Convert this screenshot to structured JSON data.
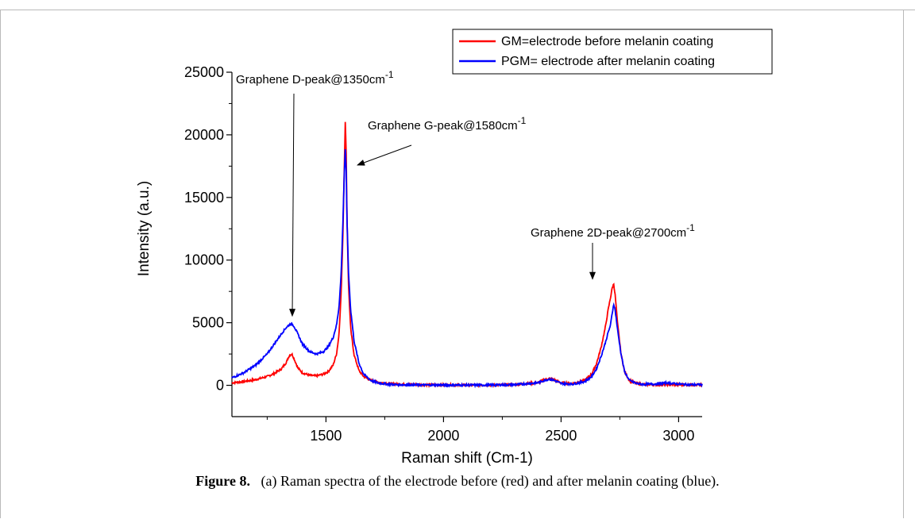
{
  "figure": {
    "label": "Figure 8.",
    "caption": "(a) Raman spectra of the electrode before (red) and after melanin coating (blue)."
  },
  "chart_data": {
    "type": "line",
    "xlabel": "Raman shift (Cm-1)",
    "ylabel": "Intensity (a.u.)",
    "xlim": [
      1100,
      3100
    ],
    "ylim": [
      -2500,
      25000
    ],
    "x_ticks": [
      1500,
      2000,
      2500,
      3000
    ],
    "x_tick_labels": [
      "1500",
      "2000",
      "2500",
      "3000"
    ],
    "y_ticks": [
      0,
      5000,
      10000,
      15000,
      20000,
      25000
    ],
    "y_tick_labels": [
      "0",
      "5000",
      "10000",
      "15000",
      "20000",
      "25000"
    ],
    "grid": false,
    "legend_position": "top-right",
    "series": [
      {
        "name": "GM=electrode before melanin coating",
        "color": "#ff0000",
        "x": [
          1100,
          1150,
          1200,
          1250,
          1280,
          1310,
          1330,
          1345,
          1355,
          1365,
          1380,
          1400,
          1430,
          1460,
          1490,
          1510,
          1530,
          1545,
          1555,
          1565,
          1572,
          1578,
          1582,
          1586,
          1590,
          1596,
          1605,
          1620,
          1640,
          1660,
          1690,
          1720,
          1760,
          1800,
          1900,
          2000,
          2100,
          2200,
          2300,
          2400,
          2430,
          2450,
          2470,
          2500,
          2550,
          2600,
          2630,
          2650,
          2670,
          2690,
          2700,
          2710,
          2718,
          2724,
          2730,
          2740,
          2755,
          2770,
          2790,
          2820,
          2850,
          2900,
          2950,
          3000,
          3050,
          3100
        ],
        "y": [
          200,
          300,
          450,
          700,
          950,
          1300,
          1800,
          2400,
          2500,
          2100,
          1400,
          1000,
          800,
          750,
          900,
          1100,
          1600,
          2500,
          4000,
          7500,
          12000,
          17500,
          21000,
          18500,
          13000,
          8000,
          4500,
          2400,
          1200,
          700,
          400,
          250,
          150,
          100,
          50,
          30,
          20,
          20,
          50,
          200,
          450,
          550,
          450,
          200,
          150,
          400,
          900,
          1700,
          3000,
          4800,
          6000,
          7000,
          7800,
          8100,
          7200,
          5000,
          2500,
          1100,
          400,
          150,
          80,
          50,
          50,
          50,
          30,
          30
        ]
      },
      {
        "name": "PGM= electrode after melanin coating",
        "color": "#0000ff",
        "x": [
          1100,
          1150,
          1200,
          1250,
          1280,
          1310,
          1330,
          1345,
          1355,
          1365,
          1380,
          1400,
          1430,
          1460,
          1490,
          1510,
          1530,
          1545,
          1555,
          1565,
          1572,
          1578,
          1582,
          1586,
          1590,
          1596,
          1605,
          1620,
          1640,
          1660,
          1690,
          1720,
          1760,
          1800,
          1900,
          2000,
          2100,
          2200,
          2300,
          2400,
          2430,
          2450,
          2470,
          2500,
          2550,
          2600,
          2630,
          2650,
          2670,
          2690,
          2700,
          2710,
          2718,
          2724,
          2730,
          2740,
          2755,
          2770,
          2790,
          2820,
          2850,
          2900,
          2950,
          3000,
          3050,
          3100
        ],
        "y": [
          600,
          1000,
          1600,
          2500,
          3300,
          4100,
          4600,
          4850,
          4900,
          4700,
          4100,
          3300,
          2700,
          2500,
          2700,
          3100,
          3800,
          4800,
          6200,
          9000,
          13000,
          17000,
          18800,
          17000,
          13000,
          9000,
          6000,
          3500,
          1800,
          900,
          400,
          200,
          100,
          50,
          30,
          20,
          20,
          20,
          50,
          200,
          400,
          500,
          400,
          150,
          100,
          300,
          700,
          1300,
          2300,
          3500,
          4200,
          4800,
          5800,
          6500,
          6000,
          4500,
          2500,
          1100,
          400,
          150,
          80,
          100,
          200,
          100,
          50,
          50
        ]
      }
    ],
    "annotations": [
      {
        "text": "Graphene D-peak@1350cm",
        "superscript": "-1",
        "point_to": [
          1350,
          4900
        ]
      },
      {
        "text": "Graphene G-peak@1580cm",
        "superscript": "-1",
        "point_to": [
          1590,
          17800
        ]
      },
      {
        "text": "Graphene 2D-peak@2700cm",
        "superscript": "-1",
        "point_to": [
          2725,
          8100
        ]
      }
    ]
  }
}
